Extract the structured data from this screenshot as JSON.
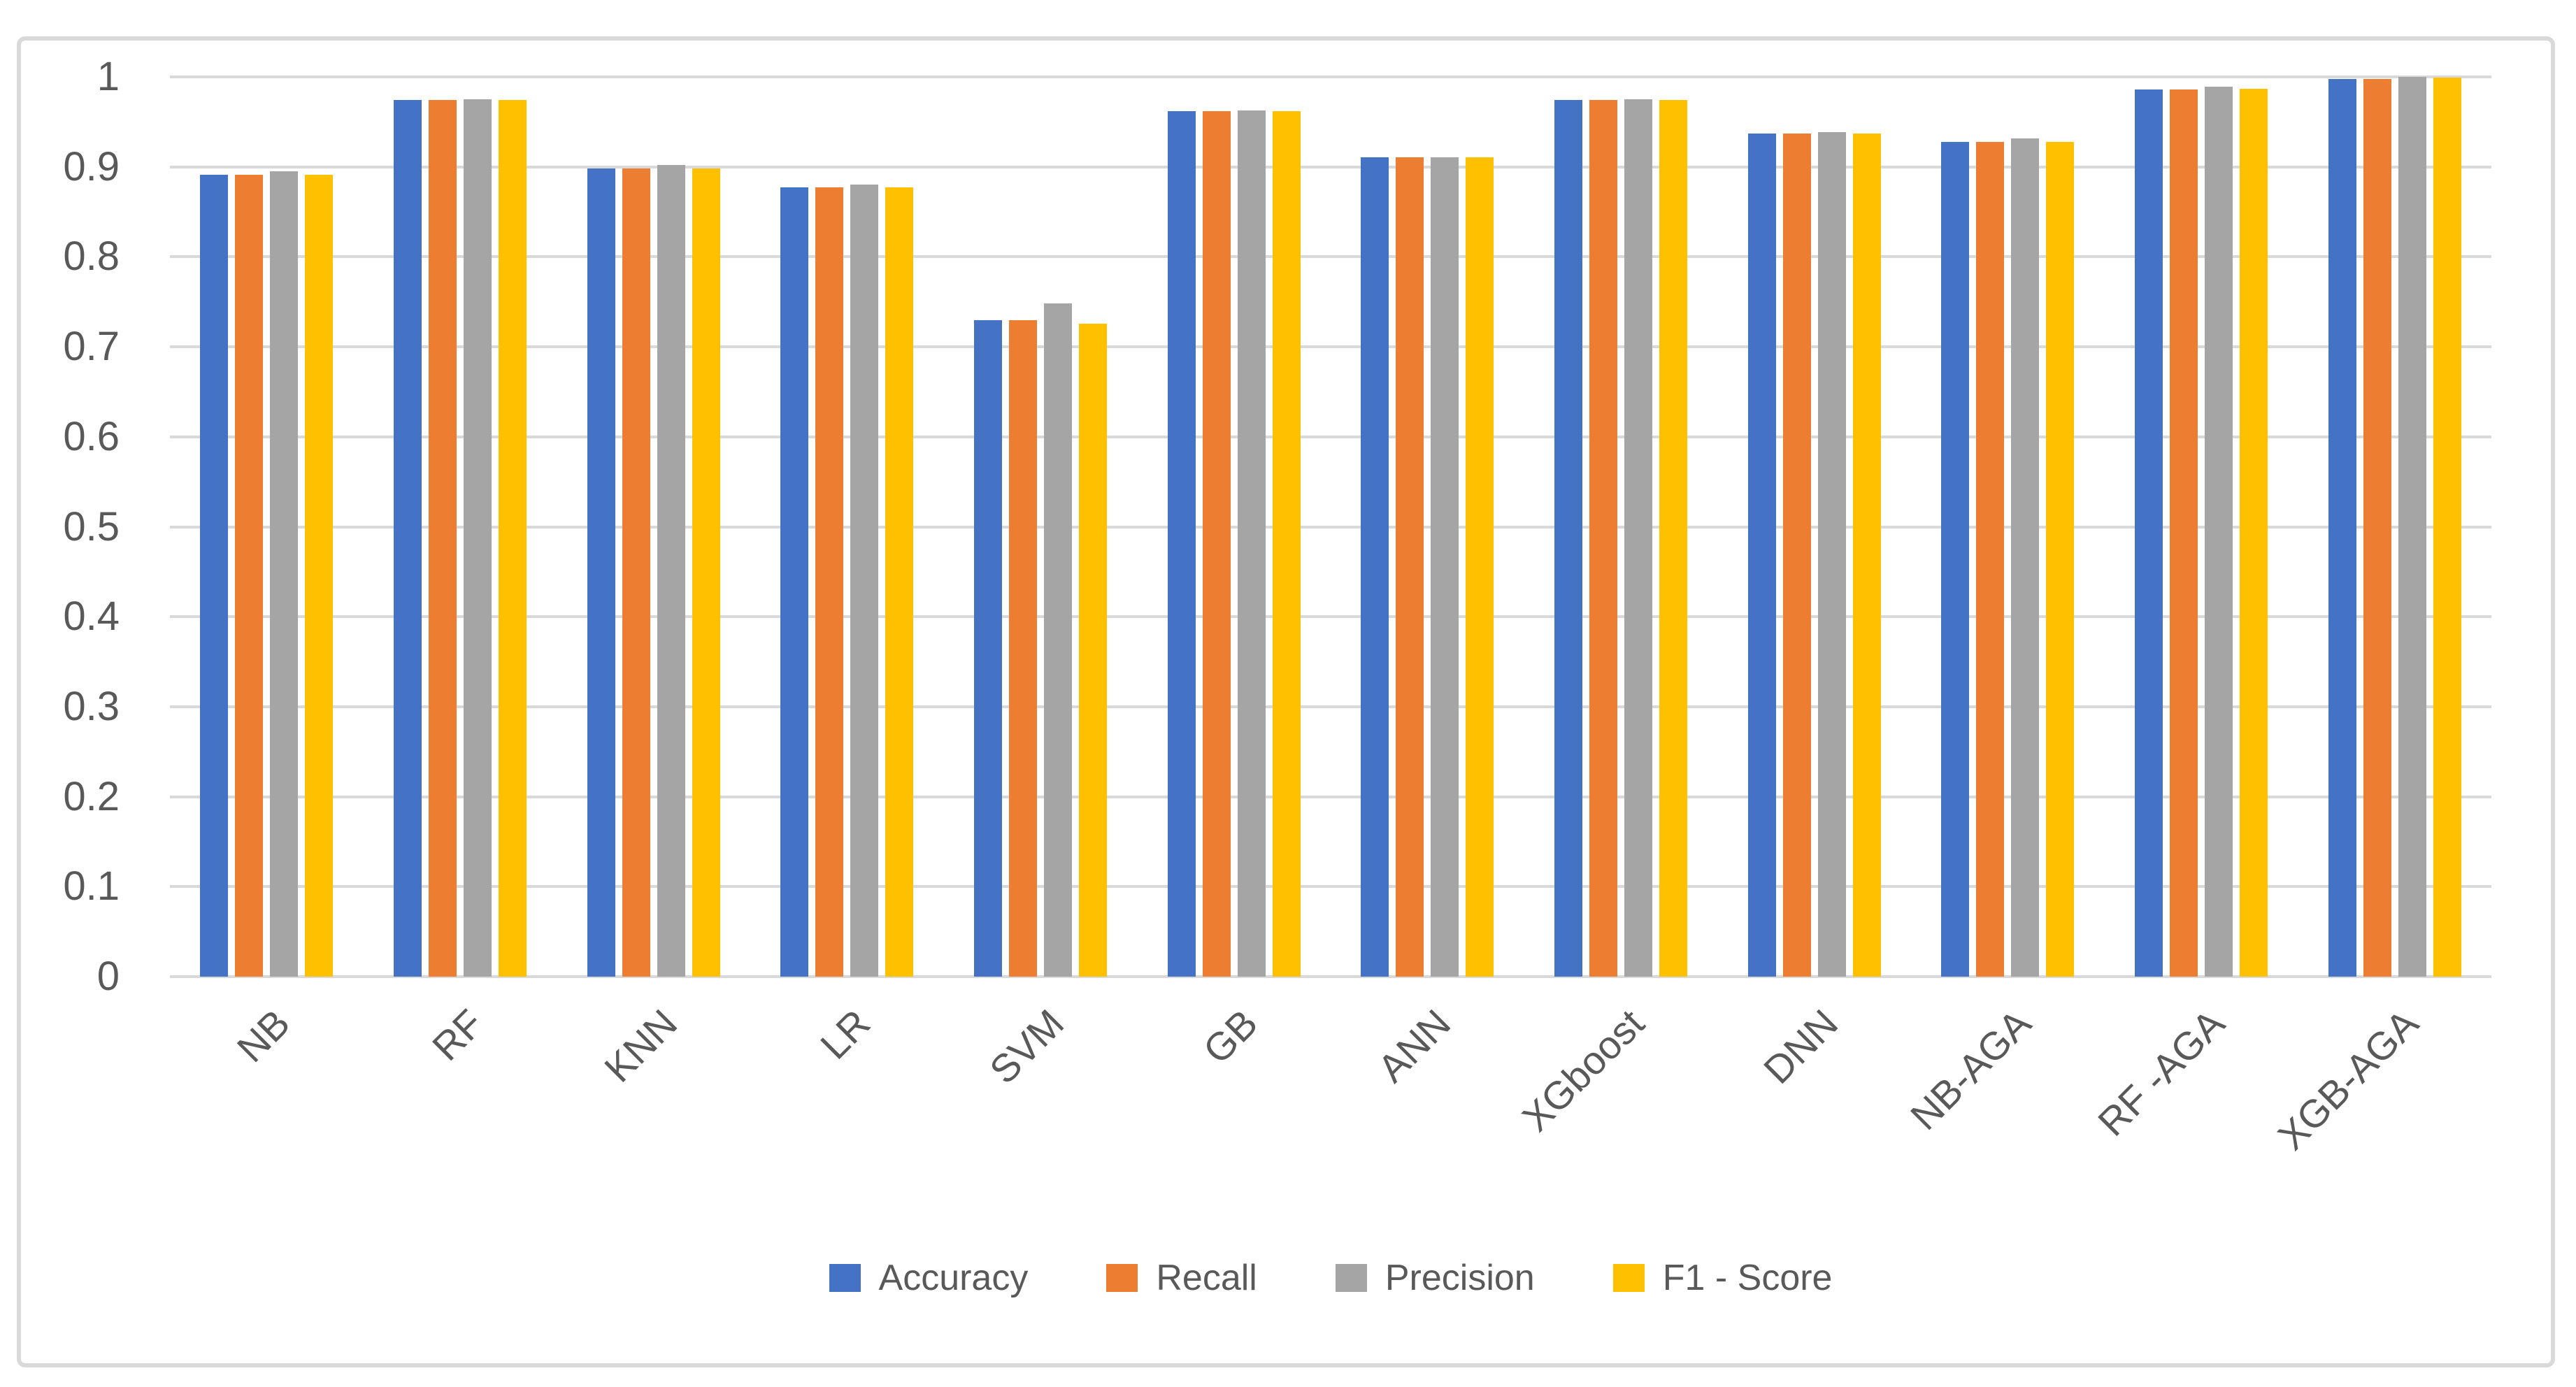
{
  "figure": {
    "background": "#FFFFFF",
    "border_color": "#D9D9D9"
  },
  "chart_data": {
    "type": "bar",
    "title": "",
    "xlabel": "",
    "ylabel": "",
    "categories": [
      "NB",
      "RF",
      "KNN",
      "LR",
      "SVM",
      "GB",
      "ANN",
      "XGboost",
      "DNN",
      "NB-AGA",
      "RF -AGA",
      "XGB-AGA"
    ],
    "series": [
      {
        "name": "Accuracy",
        "color": "#4472C4",
        "values": [
          0.891,
          0.974,
          0.898,
          0.877,
          0.73,
          0.962,
          0.911,
          0.974,
          0.937,
          0.928,
          0.986,
          0.998
        ]
      },
      {
        "name": "Recall",
        "color": "#ED7D31",
        "values": [
          0.891,
          0.974,
          0.898,
          0.877,
          0.73,
          0.962,
          0.911,
          0.974,
          0.937,
          0.928,
          0.986,
          0.998
        ]
      },
      {
        "name": "Precision",
        "color": "#A5A5A5",
        "values": [
          0.895,
          0.975,
          0.902,
          0.88,
          0.748,
          0.963,
          0.911,
          0.975,
          0.939,
          0.932,
          0.989,
          1.0
        ]
      },
      {
        "name": "F1 - Score",
        "color": "#FFC000",
        "values": [
          0.891,
          0.974,
          0.898,
          0.877,
          0.726,
          0.962,
          0.911,
          0.974,
          0.937,
          0.928,
          0.987,
          0.999
        ]
      }
    ],
    "ylim": [
      0,
      1
    ],
    "y_ticks": [
      "0",
      "0.1",
      "0.2",
      "0.3",
      "0.4",
      "0.5",
      "0.6",
      "0.7",
      "0.8",
      "0.9",
      "1"
    ],
    "grid": "horizontal",
    "gridline_color": "#D9D9D9",
    "axis_text_color": "#595959",
    "legend_position": "bottom"
  }
}
